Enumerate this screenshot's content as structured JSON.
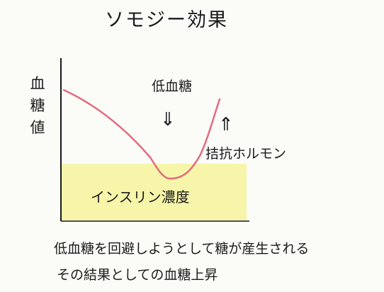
{
  "title": "ソモジー効果",
  "y_axis_label": [
    "血",
    "糖",
    "値"
  ],
  "annotations": {
    "hypoglycemia": "低血糖",
    "down_arrow": "⇓",
    "up_arrow": "⇑",
    "counter_hormone": "拮抗ホルモン",
    "insulin": "インスリン濃度"
  },
  "notes": [
    "低血糖を回避しようとして糖が産生される",
    "その結果としての血糖上昇"
  ],
  "colors": {
    "curve": "#e06b7e",
    "insulin_band": "#f6f39b",
    "ink": "#1a1a1a"
  }
}
